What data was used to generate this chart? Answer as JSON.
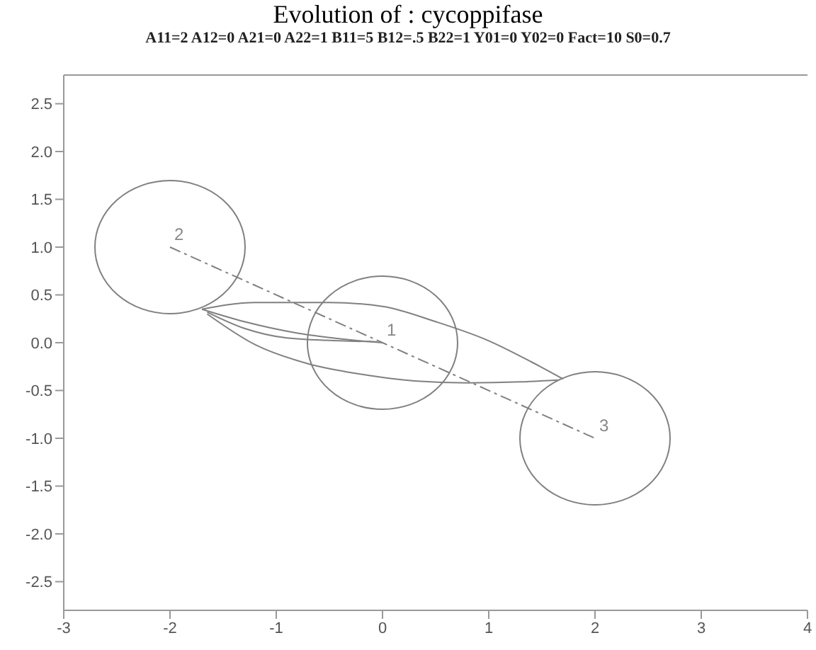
{
  "chart_data": {
    "type": "line",
    "title": "Evolution of :  cycoppifase",
    "subtitle": "A11=2 A12=0 A21=0 A22=1 B11=5 B12=.5 B22=1 Y01=0 Y02=0 Fact=10 S0=0.7",
    "xlim": [
      -3,
      4
    ],
    "xticks": [
      -3,
      -2,
      -1,
      0,
      1,
      2,
      3,
      4
    ],
    "ylim": [
      -2.8,
      2.8
    ],
    "yticks": [
      {
        "value": -2.5,
        "label": "-2.5"
      },
      {
        "value": -2,
        "label": "-2.0"
      },
      {
        "value": -1.5,
        "label": "-1.5"
      },
      {
        "value": -1,
        "label": "-1.0"
      },
      {
        "value": -0.5,
        "label": "-0.5"
      },
      {
        "value": 0,
        "label": "0.0"
      },
      {
        "value": 0.5,
        "label": "0.5"
      },
      {
        "value": 1,
        "label": "1.0"
      },
      {
        "value": 1.5,
        "label": "1.5"
      },
      {
        "value": 2,
        "label": "2.0"
      },
      {
        "value": 2.5,
        "label": "2.5"
      }
    ],
    "marker": "none",
    "series": [
      {
        "color": "#808080",
        "line_style": "solid",
        "x": [
          -1.7,
          -1.3,
          -0.8,
          -0.3,
          0
        ],
        "values": [
          0.35,
          0.22,
          0.1,
          0.03,
          0
        ]
      },
      {
        "color": "#808080",
        "line_style": "solid",
        "x": [
          -1.65,
          -1.3,
          -0.9,
          -0.4,
          -0.05
        ],
        "values": [
          0.32,
          0.15,
          0.05,
          0.02,
          0.01
        ]
      },
      {
        "color": "#808080",
        "line_style": "solid",
        "x": [
          -1.7,
          -1.2,
          -0.5,
          0,
          0.5,
          1,
          1.4,
          1.7
        ],
        "values": [
          0.35,
          0.42,
          0.42,
          0.38,
          0.22,
          0.02,
          -0.2,
          -0.38
        ]
      },
      {
        "color": "#808080",
        "line_style": "solid",
        "x": [
          -1.65,
          -1.2,
          -0.7,
          -0.2,
          0.3,
          0.8,
          1.3,
          1.65
        ],
        "values": [
          0.3,
          -0.02,
          -0.22,
          -0.33,
          -0.4,
          -0.42,
          -0.41,
          -0.39
        ]
      },
      {
        "color": "#808080",
        "line_style": "dashed",
        "x": [
          -2,
          0,
          2
        ],
        "values": [
          1,
          0,
          -1
        ]
      }
    ],
    "annotations": [
      {
        "text": "1",
        "x": 0,
        "y": 0
      },
      {
        "text": "2",
        "x": -2,
        "y": 1
      },
      {
        "text": "3",
        "x": 2,
        "y": -1
      }
    ]
  }
}
